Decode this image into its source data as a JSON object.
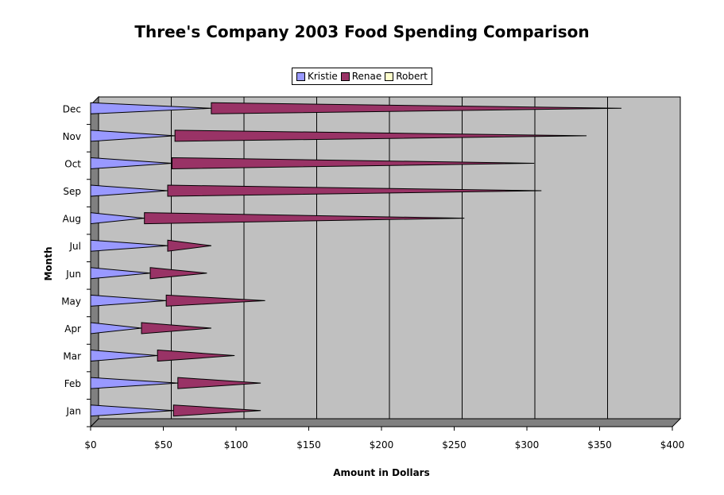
{
  "chart_data": {
    "type": "bar",
    "orientation": "horizontal",
    "stacked": true,
    "title": "Three's Company 2003 Food Spending Comparison",
    "xlabel": "Amount in Dollars",
    "ylabel": "Month",
    "categories": [
      "Jan",
      "Feb",
      "Mar",
      "Apr",
      "May",
      "Jun",
      "Jul",
      "Aug",
      "Sep",
      "Oct",
      "Nov",
      "Dec"
    ],
    "x_ticks": [
      "$0",
      "$50",
      "$100",
      "$150",
      "$200",
      "$250",
      "$300",
      "$350",
      "$400"
    ],
    "xlim": [
      0,
      400
    ],
    "grid": true,
    "legend_position": "top",
    "series": [
      {
        "name": "Kristie",
        "color": "#9999ff",
        "values": [
          57,
          60,
          46,
          35,
          52,
          41,
          53,
          37,
          53,
          56,
          58,
          83
        ]
      },
      {
        "name": "Renae",
        "color": "#993366",
        "values": [
          60,
          57,
          53,
          48,
          68,
          39,
          30,
          220,
          257,
          249,
          283,
          282
        ]
      },
      {
        "name": "Robert",
        "color": "#ffffcc",
        "values": [
          0,
          0,
          0,
          0,
          0,
          0,
          0,
          0,
          0,
          0,
          0,
          0
        ]
      }
    ]
  }
}
